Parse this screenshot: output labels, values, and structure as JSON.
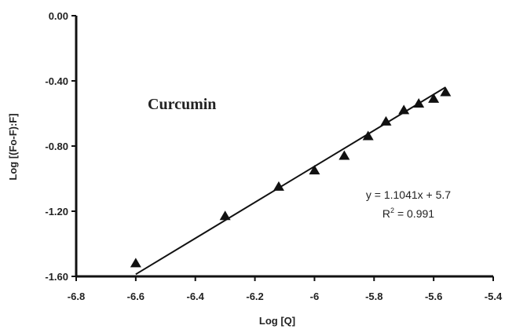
{
  "chart_data": {
    "type": "scatter",
    "xlabel": "Log [Q]",
    "ylabel": "Log [(Fo-F):F]",
    "xlim": [
      -6.8,
      -5.4
    ],
    "ylim": [
      -1.6,
      0.0
    ],
    "xticks": [
      "-6.8",
      "-6.6",
      "-6.4",
      "-6.2",
      "-6",
      "-5.8",
      "-5.6",
      "-5.4"
    ],
    "yticks": [
      "0.00",
      "-0.40",
      "-0.80",
      "-1.20",
      "-1.60"
    ],
    "grid": false,
    "marker": "triangle",
    "annotation": "Curcumin",
    "equation": "y = 1.1041x + 5.7",
    "r2_prefix": "R",
    "r2_sup": "2",
    "r2_value": " = 0.991",
    "series": [
      {
        "x": [
          -6.6,
          -6.3,
          -6.12,
          -6.0,
          -5.9,
          -5.82,
          -5.76,
          -5.7,
          -5.65,
          -5.6,
          -5.56
        ],
        "y": [
          -1.52,
          -1.23,
          -1.05,
          -0.95,
          -0.86,
          -0.74,
          -0.65,
          -0.58,
          -0.54,
          -0.51,
          -0.47
        ]
      }
    ],
    "trendline": {
      "x": [
        -6.6,
        -5.56
      ],
      "y": [
        -1.587,
        -0.439
      ]
    }
  }
}
